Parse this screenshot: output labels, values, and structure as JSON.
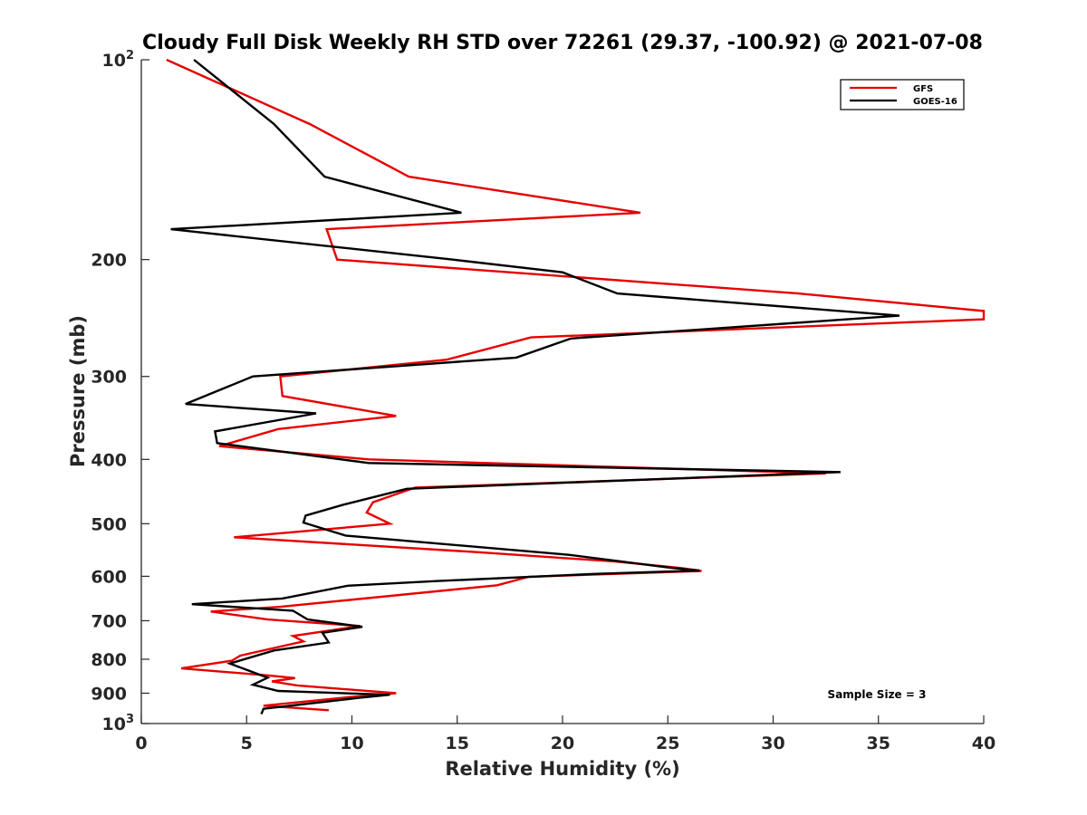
{
  "chart_data": {
    "type": "line",
    "title": "Cloudy Full Disk Weekly RH STD over 72261 (29.37, -100.92) @ 2021-07-08",
    "xlabel": "Relative Humidity (%)",
    "ylabel": "Pressure (mb)",
    "xlim": [
      0,
      40
    ],
    "ylim": [
      100,
      1000
    ],
    "yscale": "log",
    "yreversed": true,
    "xticks": [
      0,
      5,
      10,
      15,
      20,
      25,
      30,
      35,
      40
    ],
    "xtick_labels": [
      "0",
      "5",
      "10",
      "15",
      "20",
      "25",
      "30",
      "35",
      "40"
    ],
    "yticks": [
      100,
      200,
      300,
      400,
      500,
      600,
      700,
      800,
      900,
      1000
    ],
    "ytick_labels": [
      {
        "base": "10",
        "sup": "2"
      },
      {
        "base": "200"
      },
      {
        "base": "300"
      },
      {
        "base": "400"
      },
      {
        "base": "500"
      },
      {
        "base": "600"
      },
      {
        "base": "700"
      },
      {
        "base": "800"
      },
      {
        "base": "900"
      },
      {
        "base": "10",
        "sup": "3"
      }
    ],
    "legend_position": "top-right",
    "annotation": "Sample Size = 3",
    "series": [
      {
        "name": "GFS",
        "color": "#e60000",
        "points": [
          [
            1.2,
            100
          ],
          [
            8,
            125
          ],
          [
            12.7,
            150
          ],
          [
            23.7,
            170
          ],
          [
            8.8,
            180
          ],
          [
            9.3,
            200
          ],
          [
            31.2,
            225
          ],
          [
            40,
            239
          ],
          [
            40,
            246
          ],
          [
            18.5,
            262
          ],
          [
            14.5,
            283
          ],
          [
            6.6,
            300
          ],
          [
            6.7,
            321
          ],
          [
            12.1,
            344
          ],
          [
            6.5,
            360
          ],
          [
            3.7,
            382
          ],
          [
            10.8,
            400
          ],
          [
            32.5,
            420
          ],
          [
            13,
            441
          ],
          [
            11,
            464
          ],
          [
            10.7,
            481
          ],
          [
            11.8,
            500
          ],
          [
            4.4,
            524
          ],
          [
            16,
            552
          ],
          [
            22.5,
            570
          ],
          [
            25.6,
            583
          ],
          [
            26.6,
            589
          ],
          [
            18.4,
            601
          ],
          [
            16.9,
            619
          ],
          [
            6.6,
            667
          ],
          [
            3.3,
            678
          ],
          [
            6,
            697
          ],
          [
            10.4,
            713
          ],
          [
            7.2,
            738
          ],
          [
            7.7,
            752
          ],
          [
            4.7,
            790
          ],
          [
            4.3,
            804
          ],
          [
            1.9,
            826
          ],
          [
            6,
            846
          ],
          [
            7.3,
            854
          ],
          [
            6.2,
            864
          ],
          [
            7.4,
            876
          ],
          [
            12.1,
            900
          ],
          [
            9.8,
            913
          ],
          [
            5.8,
            940
          ],
          [
            8.9,
            955
          ]
        ]
      },
      {
        "name": "GOES-16",
        "color": "#000000",
        "points": [
          [
            2.5,
            100
          ],
          [
            6.3,
            125
          ],
          [
            8.7,
            150
          ],
          [
            15.2,
            170
          ],
          [
            1.4,
            180
          ],
          [
            14.8,
            200
          ],
          [
            20,
            209
          ],
          [
            22.6,
            225
          ],
          [
            36,
            243
          ],
          [
            20.4,
            263
          ],
          [
            17.8,
            281
          ],
          [
            5.3,
            300
          ],
          [
            2.1,
            330
          ],
          [
            8.3,
            341
          ],
          [
            3.5,
            363
          ],
          [
            3.6,
            378
          ],
          [
            10.8,
            405
          ],
          [
            33.2,
            418
          ],
          [
            12.6,
            443
          ],
          [
            9.6,
            468
          ],
          [
            7.8,
            486
          ],
          [
            7.7,
            498
          ],
          [
            9.7,
            521
          ],
          [
            20.3,
            557
          ],
          [
            25.2,
            583
          ],
          [
            26.5,
            588
          ],
          [
            21.6,
            595
          ],
          [
            14.1,
            610
          ],
          [
            9.8,
            620
          ],
          [
            6.7,
            648
          ],
          [
            2.4,
            661
          ],
          [
            7.2,
            676
          ],
          [
            7.9,
            697
          ],
          [
            10.5,
            715
          ],
          [
            8.6,
            730
          ],
          [
            8.9,
            755
          ],
          [
            6.3,
            776
          ],
          [
            4.2,
            812
          ],
          [
            6,
            853
          ],
          [
            5.3,
            874
          ],
          [
            6.5,
            893
          ],
          [
            11.8,
            905
          ],
          [
            10.3,
            915
          ],
          [
            5.8,
            950
          ],
          [
            5.7,
            968
          ]
        ]
      }
    ]
  }
}
